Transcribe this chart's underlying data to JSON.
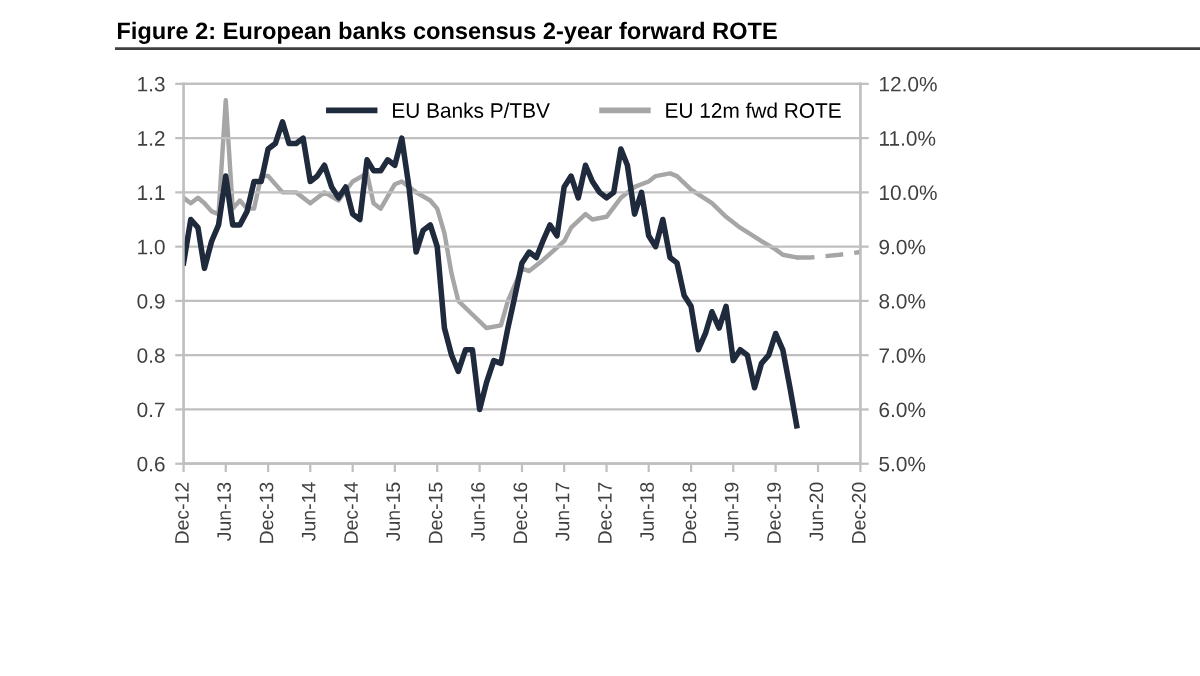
{
  "chart_data": {
    "type": "line",
    "title": "Figure 2: European banks consensus 2-year forward ROTE",
    "series": [
      {
        "name": "EU Banks P/TBV",
        "color": "#1f2a3c",
        "x": [
          "2012-12",
          "2013-01",
          "2013-02",
          "2013-03",
          "2013-04",
          "2013-05",
          "2013-06",
          "2013-07",
          "2013-08",
          "2013-09",
          "2013-10",
          "2013-11",
          "2013-12",
          "2014-01",
          "2014-02",
          "2014-03",
          "2014-04",
          "2014-05",
          "2014-06",
          "2014-07",
          "2014-08",
          "2014-09",
          "2014-10",
          "2014-11",
          "2014-12",
          "2015-01",
          "2015-02",
          "2015-03",
          "2015-04",
          "2015-05",
          "2015-06",
          "2015-07",
          "2015-08",
          "2015-09",
          "2015-10",
          "2015-11",
          "2015-12",
          "2016-01",
          "2016-02",
          "2016-03",
          "2016-04",
          "2016-05",
          "2016-06",
          "2016-07",
          "2016-08",
          "2016-09",
          "2016-10",
          "2016-11",
          "2016-12",
          "2017-01",
          "2017-02",
          "2017-03",
          "2017-04",
          "2017-05",
          "2017-06",
          "2017-07",
          "2017-08",
          "2017-09",
          "2017-10",
          "2017-11",
          "2017-12",
          "2018-01",
          "2018-02",
          "2018-03",
          "2018-04",
          "2018-05",
          "2018-06",
          "2018-07",
          "2018-08",
          "2018-09",
          "2018-10",
          "2018-11",
          "2018-12",
          "2019-01",
          "2019-02",
          "2019-03",
          "2019-04",
          "2019-05",
          "2019-06",
          "2019-07",
          "2019-08",
          "2019-09",
          "2019-10",
          "2019-11",
          "2019-12",
          "2020-01",
          "2020-02",
          "2020-03"
        ],
        "values": [
          0.97,
          1.05,
          1.035,
          0.96,
          1.01,
          1.04,
          1.13,
          1.04,
          1.04,
          1.065,
          1.12,
          1.12,
          1.18,
          1.19,
          1.23,
          1.19,
          1.19,
          1.2,
          1.12,
          1.13,
          1.15,
          1.11,
          1.09,
          1.11,
          1.06,
          1.05,
          1.16,
          1.14,
          1.14,
          1.16,
          1.15,
          1.2,
          1.11,
          0.99,
          1.03,
          1.04,
          1.0,
          0.85,
          0.8,
          0.77,
          0.81,
          0.81,
          0.7,
          0.75,
          0.79,
          0.785,
          0.85,
          0.91,
          0.97,
          0.99,
          0.98,
          1.01,
          1.04,
          1.02,
          1.11,
          1.13,
          1.09,
          1.15,
          1.12,
          1.1,
          1.09,
          1.1,
          1.18,
          1.15,
          1.06,
          1.1,
          1.02,
          1.0,
          1.05,
          0.98,
          0.97,
          0.91,
          0.89,
          0.81,
          0.84,
          0.88,
          0.85,
          0.89,
          0.79,
          0.81,
          0.8,
          0.74,
          0.785,
          0.8,
          0.84,
          0.81,
          0.74,
          0.67
        ]
      },
      {
        "name": "EU 12m fwd ROTE",
        "color": "#a6a6a6",
        "axis": "y2",
        "x": [
          "2012-12",
          "2013-01",
          "2013-02",
          "2013-03",
          "2013-04",
          "2013-05",
          "2013-06",
          "2013-07",
          "2013-08",
          "2013-09",
          "2013-10",
          "2013-11",
          "2013-12",
          "2014-02",
          "2014-04",
          "2014-06",
          "2014-08",
          "2014-10",
          "2014-12",
          "2015-02",
          "2015-03",
          "2015-04",
          "2015-06",
          "2015-07",
          "2015-09",
          "2015-11",
          "2015-12",
          "2016-01",
          "2016-02",
          "2016-03",
          "2016-05",
          "2016-07",
          "2016-09",
          "2016-10",
          "2016-12",
          "2017-01",
          "2017-03",
          "2017-06",
          "2017-07",
          "2017-09",
          "2017-10",
          "2017-12",
          "2018-02",
          "2018-04",
          "2018-06",
          "2018-07",
          "2018-09",
          "2018-10",
          "2018-12",
          "2019-03",
          "2019-05",
          "2019-07",
          "2019-10",
          "2019-12",
          "2020-01",
          "2020-03"
        ],
        "values": [
          9.9,
          9.8,
          9.9,
          9.8,
          9.65,
          9.6,
          11.7,
          9.7,
          9.85,
          9.7,
          9.7,
          10.3,
          10.3,
          10.0,
          10.0,
          9.8,
          10.0,
          9.85,
          10.2,
          10.35,
          9.8,
          9.7,
          10.15,
          10.2,
          10.0,
          9.85,
          9.7,
          9.25,
          8.5,
          8.0,
          7.75,
          7.5,
          7.55,
          8.0,
          8.6,
          8.55,
          8.75,
          9.1,
          9.35,
          9.6,
          9.5,
          9.55,
          9.9,
          10.1,
          10.2,
          10.3,
          10.35,
          10.3,
          10.05,
          9.8,
          9.55,
          9.35,
          9.1,
          8.95,
          8.85,
          8.8
        ]
      },
      {
        "color": "#a6a6a6",
        "axis": "y2",
        "line_style": "dashed",
        "x": [
          "2020-03",
          "2020-05",
          "2020-09",
          "2020-12"
        ],
        "values": [
          8.8,
          8.8,
          8.85,
          8.9
        ]
      }
    ],
    "xlim": [
      "2012-12",
      "2020-12"
    ],
    "xticks": [
      {
        "value": "2012-12",
        "label": "Dec-12"
      },
      {
        "value": "2013-06",
        "label": "Jun-13"
      },
      {
        "value": "2013-12",
        "label": "Dec-13"
      },
      {
        "value": "2014-06",
        "label": "Jun-14"
      },
      {
        "value": "2014-12",
        "label": "Dec-14"
      },
      {
        "value": "2015-06",
        "label": "Jun-15"
      },
      {
        "value": "2015-12",
        "label": "Dec-15"
      },
      {
        "value": "2016-06",
        "label": "Jun-16"
      },
      {
        "value": "2016-12",
        "label": "Dec-16"
      },
      {
        "value": "2017-06",
        "label": "Jun-17"
      },
      {
        "value": "2017-12",
        "label": "Dec-17"
      },
      {
        "value": "2018-06",
        "label": "Jun-18"
      },
      {
        "value": "2018-12",
        "label": "Dec-18"
      },
      {
        "value": "2019-06",
        "label": "Jun-19"
      },
      {
        "value": "2019-12",
        "label": "Dec-19"
      },
      {
        "value": "2020-06",
        "label": "Jun-20"
      },
      {
        "value": "2020-12",
        "label": "Dec-20"
      }
    ],
    "ylim": [
      0.6,
      1.3
    ],
    "yticks": [
      {
        "value": 0.6,
        "label": "0.6"
      },
      {
        "value": 0.7,
        "label": "0.7"
      },
      {
        "value": 0.8,
        "label": "0.8"
      },
      {
        "value": 0.9,
        "label": "0.9"
      },
      {
        "value": 1.0,
        "label": "1.0"
      },
      {
        "value": 1.1,
        "label": "1.1"
      },
      {
        "value": 1.2,
        "label": "1.2"
      },
      {
        "value": 1.3,
        "label": "1.3"
      }
    ],
    "y2lim": [
      5,
      12
    ],
    "y2ticks": [
      {
        "value": 5,
        "label": "5.0%"
      },
      {
        "value": 6,
        "label": "6.0%"
      },
      {
        "value": 7,
        "label": "7.0%"
      },
      {
        "value": 8,
        "label": "8.0%"
      },
      {
        "value": 9,
        "label": "9.0%"
      },
      {
        "value": 10,
        "label": "10.0%"
      },
      {
        "value": 11,
        "label": "11.0%"
      },
      {
        "value": 12,
        "label": "12.0%"
      }
    ],
    "grid": "y",
    "legend": "top right",
    "line_style": "solid",
    "marker": "none"
  }
}
